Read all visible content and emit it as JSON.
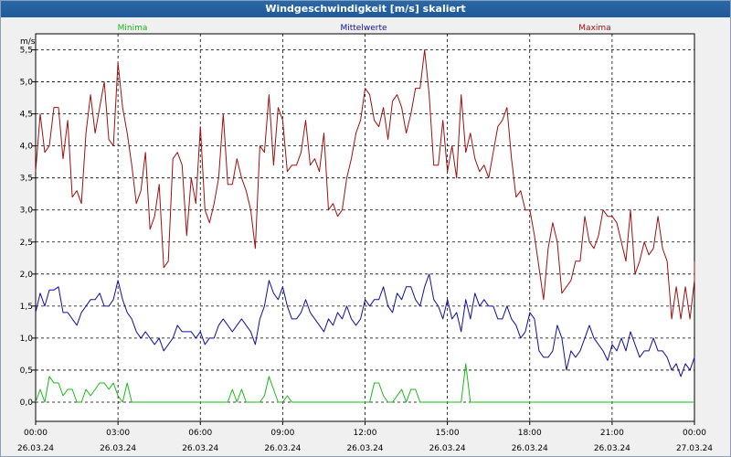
{
  "title": "Windgeschwindigkeit [m/s] skaliert",
  "colors": {
    "minima": "#18b818",
    "mittel": "#1010a0",
    "maxima": "#a01010",
    "titlebar": "#2563a4"
  },
  "chart_data": {
    "type": "line",
    "title": "Windgeschwindigkeit [m/s] skaliert",
    "ylabel": "m/s",
    "ylim": [
      -0.3,
      5.75
    ],
    "yticks": [
      "0,0",
      "0,5",
      "1,0",
      "1,5",
      "2,0",
      "2,5",
      "3,0",
      "3,5",
      "4,0",
      "4,5",
      "5,0",
      "5,5"
    ],
    "ytick_values": [
      0,
      0.5,
      1.0,
      1.5,
      2.0,
      2.5,
      3.0,
      3.5,
      4.0,
      4.5,
      5.0,
      5.5
    ],
    "xlim": [
      0,
      24
    ],
    "xticks_time": [
      "00:00",
      "03:00",
      "06:00",
      "09:00",
      "12:00",
      "15:00",
      "18:00",
      "21:00",
      "00:00"
    ],
    "xticks_date": [
      "26.03.24",
      "26.03.24",
      "26.03.24",
      "26.03.24",
      "26.03.24",
      "26.03.24",
      "26.03.24",
      "26.03.24",
      "27.03.24"
    ],
    "x_unit": "hours",
    "grid": true,
    "legend": [
      "Minima",
      "Mittelwerte",
      "Maxima"
    ],
    "series": [
      {
        "name": "Maxima",
        "x_start": 0,
        "x_step": 0.1667,
        "values": [
          3.6,
          4.5,
          3.9,
          4.0,
          4.6,
          4.6,
          3.8,
          4.4,
          3.2,
          3.3,
          3.1,
          4.2,
          4.8,
          4.2,
          4.6,
          5.0,
          4.1,
          4.0,
          5.3,
          4.6,
          4.2,
          3.7,
          3.1,
          3.3,
          3.9,
          2.7,
          2.9,
          3.4,
          2.1,
          2.2,
          3.8,
          3.9,
          3.7,
          2.6,
          3.5,
          3.1,
          4.3,
          3.0,
          2.8,
          3.1,
          3.5,
          4.5,
          3.4,
          3.4,
          3.8,
          3.5,
          3.3,
          3.0,
          2.4,
          4.0,
          3.9,
          4.8,
          3.7,
          4.6,
          4.4,
          3.6,
          3.7,
          3.7,
          3.9,
          4.4,
          3.7,
          3.8,
          3.6,
          4.2,
          3.0,
          3.1,
          2.9,
          3.0,
          3.5,
          3.8,
          4.2,
          4.4,
          4.9,
          4.8,
          4.4,
          4.3,
          4.6,
          4.1,
          4.7,
          4.8,
          4.6,
          4.2,
          4.5,
          4.9,
          4.9,
          5.5,
          4.8,
          3.7,
          3.7,
          4.4,
          3.6,
          4.0,
          3.5,
          4.8,
          3.9,
          4.2,
          3.8,
          3.6,
          3.7,
          3.5,
          3.9,
          4.3,
          4.4,
          4.6,
          3.8,
          3.2,
          3.3,
          3.0,
          3.0,
          2.6,
          2.1,
          1.6,
          2.4,
          2.8,
          2.5,
          1.7,
          1.8,
          1.9,
          2.2,
          2.2,
          2.9,
          2.5,
          2.4,
          2.6,
          3.0,
          2.9,
          2.9,
          2.8,
          2.5,
          2.2,
          3.0,
          2.0,
          2.2,
          2.5,
          2.3,
          2.4,
          2.9,
          2.4,
          2.2,
          1.3,
          1.8,
          1.3,
          1.8,
          1.3,
          1.9,
          2.1,
          2.2
        ]
      },
      {
        "name": "Mittelwerte",
        "x_start": 0,
        "x_step": 0.1667,
        "values": [
          1.4,
          1.7,
          1.5,
          1.75,
          1.75,
          1.8,
          1.4,
          1.4,
          1.3,
          1.2,
          1.4,
          1.5,
          1.6,
          1.6,
          1.7,
          1.5,
          1.5,
          1.6,
          1.9,
          1.6,
          1.4,
          1.3,
          1.1,
          1.0,
          1.1,
          1.0,
          0.9,
          1.0,
          0.8,
          0.9,
          1.0,
          1.2,
          1.1,
          1.1,
          1.1,
          1.0,
          1.1,
          0.9,
          1.0,
          1.0,
          1.2,
          1.3,
          1.2,
          1.1,
          1.2,
          1.3,
          1.2,
          1.1,
          0.9,
          1.3,
          1.5,
          1.9,
          1.7,
          1.6,
          1.8,
          1.5,
          1.3,
          1.3,
          1.4,
          1.6,
          1.4,
          1.3,
          1.2,
          1.1,
          1.3,
          1.2,
          1.4,
          1.3,
          1.5,
          1.3,
          1.2,
          1.3,
          1.6,
          1.5,
          1.6,
          1.6,
          1.8,
          1.5,
          1.4,
          1.7,
          1.6,
          1.8,
          1.8,
          1.6,
          1.5,
          1.8,
          2.0,
          1.6,
          1.5,
          1.3,
          1.6,
          1.3,
          1.4,
          1.1,
          1.6,
          1.3,
          1.7,
          1.5,
          1.6,
          1.5,
          1.5,
          1.3,
          1.3,
          1.5,
          1.3,
          1.2,
          1.0,
          1.1,
          1.4,
          1.3,
          0.8,
          0.7,
          0.7,
          0.8,
          1.2,
          1.0,
          0.5,
          0.8,
          0.7,
          0.8,
          1.0,
          1.2,
          1.0,
          0.9,
          0.8,
          0.65,
          0.9,
          0.8,
          1.0,
          0.8,
          1.1,
          0.9,
          0.7,
          0.8,
          0.8,
          1.0,
          0.8,
          0.8,
          0.7,
          0.5,
          0.6,
          0.4,
          0.6,
          0.5,
          0.7,
          0.65,
          0.7
        ]
      },
      {
        "name": "Minima",
        "x_start": 0,
        "x_step": 0.1667,
        "values": [
          0.0,
          0.2,
          0.0,
          0.4,
          0.3,
          0.3,
          0.1,
          0.2,
          0.2,
          0.0,
          0.0,
          0.2,
          0.1,
          0.2,
          0.3,
          0.3,
          0.2,
          0.3,
          0.1,
          0.0,
          0.3,
          0.0,
          0.0,
          0.0,
          0.0,
          0.0,
          0.0,
          0.0,
          0.0,
          0.0,
          0.0,
          0.0,
          0.0,
          0.0,
          0.0,
          0.0,
          0.0,
          0.0,
          0.0,
          0.0,
          0.0,
          0.0,
          0.0,
          0.2,
          0.0,
          0.2,
          0.0,
          0.0,
          0.0,
          0.0,
          0.1,
          0.4,
          0.2,
          0.0,
          0.0,
          0.1,
          0.0,
          0.0,
          0.0,
          0.0,
          0.0,
          0.0,
          0.0,
          0.0,
          0.0,
          0.0,
          0.0,
          0.0,
          0.0,
          0.0,
          0.0,
          0.0,
          0.0,
          0.0,
          0.3,
          0.3,
          0.1,
          0.0,
          0.0,
          0.1,
          0.2,
          0.0,
          0.2,
          0.2,
          0.0,
          0.0,
          0.0,
          0.0,
          0.0,
          0.0,
          0.0,
          0.0,
          0.0,
          0.0,
          0.6,
          0.0,
          0.0,
          0.0,
          0.0,
          0.0,
          0.0,
          0.0,
          0.0,
          0.0,
          0.0,
          0.0,
          0.0,
          0.0,
          0.0,
          0.0,
          0.0,
          0.0,
          0.0,
          0.0,
          0.0,
          0.0,
          0.0,
          0.0,
          0.0,
          0.0,
          0.0,
          0.0,
          0.0,
          0.0,
          0.0,
          0.0,
          0.0,
          0.0,
          0.0,
          0.0,
          0.0,
          0.0,
          0.0,
          0.0,
          0.0,
          0.0,
          0.0,
          0.0,
          0.0,
          0.0,
          0.0,
          0.0,
          0.0,
          0.0,
          0.0,
          0.0,
          0.0,
          0.0
        ]
      }
    ]
  }
}
